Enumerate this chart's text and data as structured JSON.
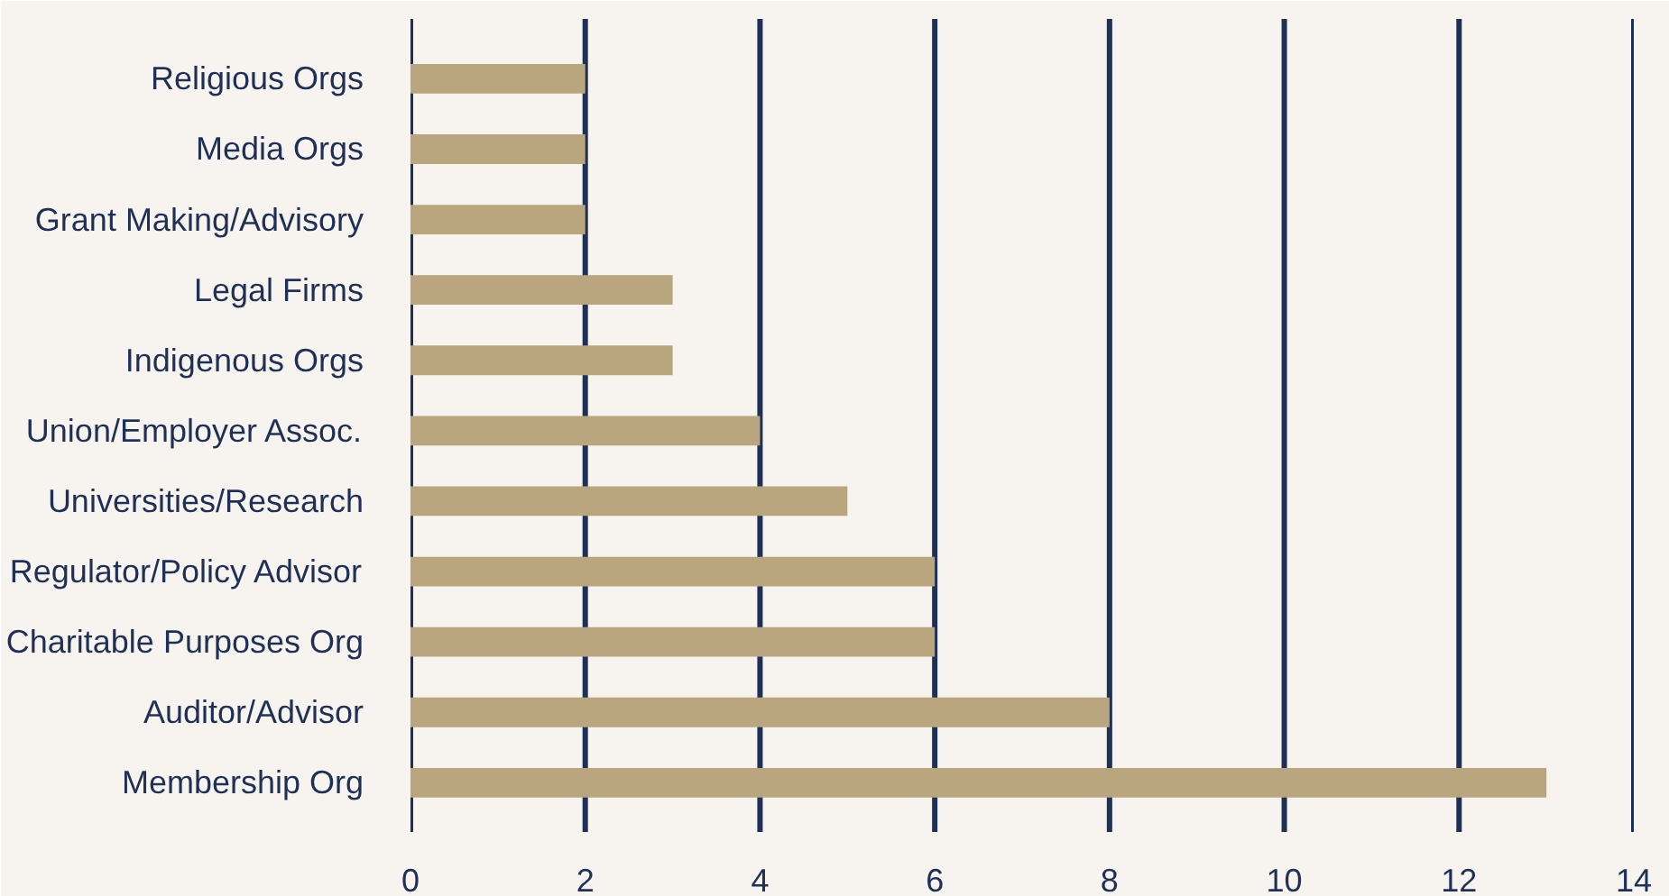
{
  "chart_data": {
    "type": "bar",
    "orientation": "horizontal",
    "categories": [
      "Religious Orgs",
      "Media Orgs",
      "Grant Making/Advisory",
      "Legal Firms",
      "Indigenous Orgs",
      "Union/Employer Assoc.",
      "Universities/Research",
      "Regulator/Policy Advisor",
      "Charitable Purposes Org",
      "Auditor/Advisor",
      "Membership Org"
    ],
    "values": [
      2,
      2,
      2,
      3,
      3,
      4,
      5,
      6,
      6,
      8,
      13
    ],
    "color": "#b9a57e",
    "xlim": [
      0,
      14
    ],
    "xticks": [
      0,
      2,
      4,
      6,
      8,
      10,
      12,
      14
    ],
    "grid": "x"
  }
}
